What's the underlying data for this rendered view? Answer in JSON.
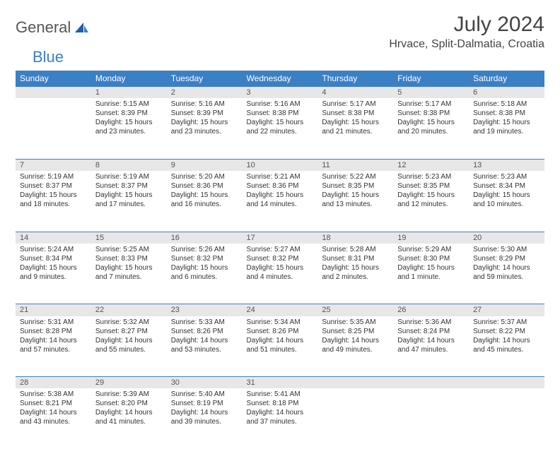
{
  "logo": {
    "text_general": "General",
    "text_blue": "Blue",
    "color_general": "#555555",
    "color_blue": "#3b7fc4"
  },
  "title": "July 2024",
  "location": "Hrvace, Split-Dalmatia, Croatia",
  "colors": {
    "header_bg": "#3b7fc4",
    "header_text": "#ffffff",
    "daynum_bg": "#e7e7e7",
    "row_divider": "#3b7fc4",
    "body_text": "#333333",
    "page_bg": "#ffffff"
  },
  "weekdays": [
    "Sunday",
    "Monday",
    "Tuesday",
    "Wednesday",
    "Thursday",
    "Friday",
    "Saturday"
  ],
  "weeks": [
    [
      {
        "n": "",
        "sr": "",
        "ss": "",
        "dl": ""
      },
      {
        "n": "1",
        "sr": "Sunrise: 5:15 AM",
        "ss": "Sunset: 8:39 PM",
        "dl": "Daylight: 15 hours and 23 minutes."
      },
      {
        "n": "2",
        "sr": "Sunrise: 5:16 AM",
        "ss": "Sunset: 8:39 PM",
        "dl": "Daylight: 15 hours and 23 minutes."
      },
      {
        "n": "3",
        "sr": "Sunrise: 5:16 AM",
        "ss": "Sunset: 8:38 PM",
        "dl": "Daylight: 15 hours and 22 minutes."
      },
      {
        "n": "4",
        "sr": "Sunrise: 5:17 AM",
        "ss": "Sunset: 8:38 PM",
        "dl": "Daylight: 15 hours and 21 minutes."
      },
      {
        "n": "5",
        "sr": "Sunrise: 5:17 AM",
        "ss": "Sunset: 8:38 PM",
        "dl": "Daylight: 15 hours and 20 minutes."
      },
      {
        "n": "6",
        "sr": "Sunrise: 5:18 AM",
        "ss": "Sunset: 8:38 PM",
        "dl": "Daylight: 15 hours and 19 minutes."
      }
    ],
    [
      {
        "n": "7",
        "sr": "Sunrise: 5:19 AM",
        "ss": "Sunset: 8:37 PM",
        "dl": "Daylight: 15 hours and 18 minutes."
      },
      {
        "n": "8",
        "sr": "Sunrise: 5:19 AM",
        "ss": "Sunset: 8:37 PM",
        "dl": "Daylight: 15 hours and 17 minutes."
      },
      {
        "n": "9",
        "sr": "Sunrise: 5:20 AM",
        "ss": "Sunset: 8:36 PM",
        "dl": "Daylight: 15 hours and 16 minutes."
      },
      {
        "n": "10",
        "sr": "Sunrise: 5:21 AM",
        "ss": "Sunset: 8:36 PM",
        "dl": "Daylight: 15 hours and 14 minutes."
      },
      {
        "n": "11",
        "sr": "Sunrise: 5:22 AM",
        "ss": "Sunset: 8:35 PM",
        "dl": "Daylight: 15 hours and 13 minutes."
      },
      {
        "n": "12",
        "sr": "Sunrise: 5:23 AM",
        "ss": "Sunset: 8:35 PM",
        "dl": "Daylight: 15 hours and 12 minutes."
      },
      {
        "n": "13",
        "sr": "Sunrise: 5:23 AM",
        "ss": "Sunset: 8:34 PM",
        "dl": "Daylight: 15 hours and 10 minutes."
      }
    ],
    [
      {
        "n": "14",
        "sr": "Sunrise: 5:24 AM",
        "ss": "Sunset: 8:34 PM",
        "dl": "Daylight: 15 hours and 9 minutes."
      },
      {
        "n": "15",
        "sr": "Sunrise: 5:25 AM",
        "ss": "Sunset: 8:33 PM",
        "dl": "Daylight: 15 hours and 7 minutes."
      },
      {
        "n": "16",
        "sr": "Sunrise: 5:26 AM",
        "ss": "Sunset: 8:32 PM",
        "dl": "Daylight: 15 hours and 6 minutes."
      },
      {
        "n": "17",
        "sr": "Sunrise: 5:27 AM",
        "ss": "Sunset: 8:32 PM",
        "dl": "Daylight: 15 hours and 4 minutes."
      },
      {
        "n": "18",
        "sr": "Sunrise: 5:28 AM",
        "ss": "Sunset: 8:31 PM",
        "dl": "Daylight: 15 hours and 2 minutes."
      },
      {
        "n": "19",
        "sr": "Sunrise: 5:29 AM",
        "ss": "Sunset: 8:30 PM",
        "dl": "Daylight: 15 hours and 1 minute."
      },
      {
        "n": "20",
        "sr": "Sunrise: 5:30 AM",
        "ss": "Sunset: 8:29 PM",
        "dl": "Daylight: 14 hours and 59 minutes."
      }
    ],
    [
      {
        "n": "21",
        "sr": "Sunrise: 5:31 AM",
        "ss": "Sunset: 8:28 PM",
        "dl": "Daylight: 14 hours and 57 minutes."
      },
      {
        "n": "22",
        "sr": "Sunrise: 5:32 AM",
        "ss": "Sunset: 8:27 PM",
        "dl": "Daylight: 14 hours and 55 minutes."
      },
      {
        "n": "23",
        "sr": "Sunrise: 5:33 AM",
        "ss": "Sunset: 8:26 PM",
        "dl": "Daylight: 14 hours and 53 minutes."
      },
      {
        "n": "24",
        "sr": "Sunrise: 5:34 AM",
        "ss": "Sunset: 8:26 PM",
        "dl": "Daylight: 14 hours and 51 minutes."
      },
      {
        "n": "25",
        "sr": "Sunrise: 5:35 AM",
        "ss": "Sunset: 8:25 PM",
        "dl": "Daylight: 14 hours and 49 minutes."
      },
      {
        "n": "26",
        "sr": "Sunrise: 5:36 AM",
        "ss": "Sunset: 8:24 PM",
        "dl": "Daylight: 14 hours and 47 minutes."
      },
      {
        "n": "27",
        "sr": "Sunrise: 5:37 AM",
        "ss": "Sunset: 8:22 PM",
        "dl": "Daylight: 14 hours and 45 minutes."
      }
    ],
    [
      {
        "n": "28",
        "sr": "Sunrise: 5:38 AM",
        "ss": "Sunset: 8:21 PM",
        "dl": "Daylight: 14 hours and 43 minutes."
      },
      {
        "n": "29",
        "sr": "Sunrise: 5:39 AM",
        "ss": "Sunset: 8:20 PM",
        "dl": "Daylight: 14 hours and 41 minutes."
      },
      {
        "n": "30",
        "sr": "Sunrise: 5:40 AM",
        "ss": "Sunset: 8:19 PM",
        "dl": "Daylight: 14 hours and 39 minutes."
      },
      {
        "n": "31",
        "sr": "Sunrise: 5:41 AM",
        "ss": "Sunset: 8:18 PM",
        "dl": "Daylight: 14 hours and 37 minutes."
      },
      {
        "n": "",
        "sr": "",
        "ss": "",
        "dl": ""
      },
      {
        "n": "",
        "sr": "",
        "ss": "",
        "dl": ""
      },
      {
        "n": "",
        "sr": "",
        "ss": "",
        "dl": ""
      }
    ]
  ]
}
